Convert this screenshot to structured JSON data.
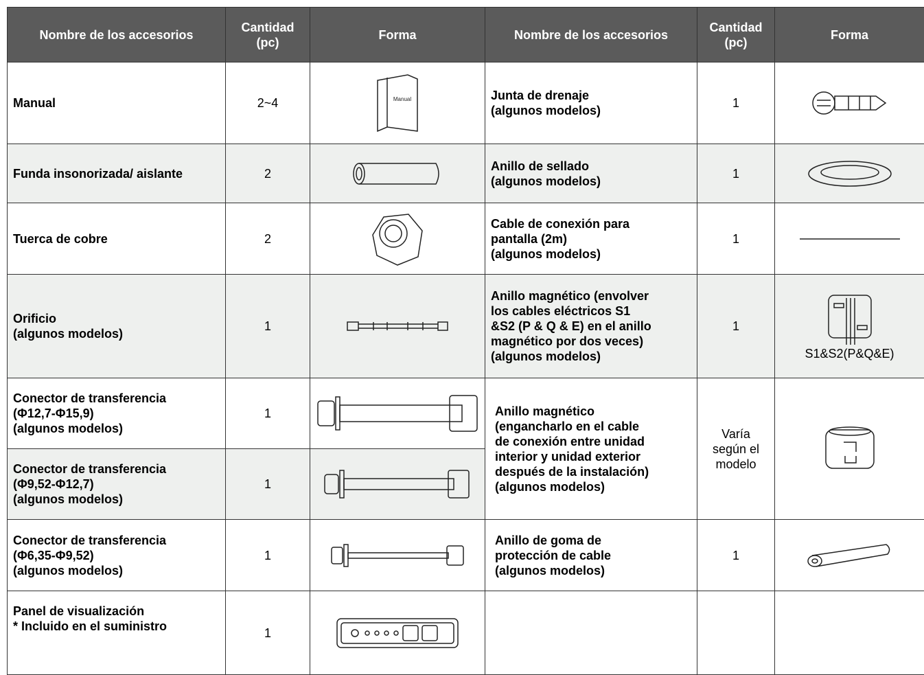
{
  "header": {
    "columns": [
      "Nombre de los accesorios",
      "Cantidad\n(pc)",
      "Forma",
      "Nombre de los accesorios",
      "Cantidad\n(pc)",
      "Forma"
    ]
  },
  "table": {
    "rows": [
      {
        "left": {
          "name": "Manual",
          "qty": "2~4",
          "icon_label": "Manual"
        },
        "right": {
          "name": "Junta de drenaje\n(algunos modelos)",
          "qty": 1
        }
      },
      {
        "left": {
          "name": "Funda insonorizada/ aislante",
          "qty": 2
        },
        "right": {
          "name": "Anillo de sellado\n(algunos modelos)",
          "qty": 1
        }
      },
      {
        "left": {
          "name": "Tuerca de cobre",
          "qty": 2
        },
        "right": {
          "name": "Cable de conexión para\npantalla (2m)\n(algunos modelos)",
          "qty": 1
        }
      },
      {
        "left": {
          "name": "Orificio\n(algunos modelos)",
          "qty": 1
        },
        "right": {
          "name": "Anillo magnético (envolver\nlos cables eléctricos S1\n&S2 (P & Q & E) en el anillo\nmagnético por dos veces)\n(algunos modelos)",
          "qty": 1,
          "icon_label": "S1&S2(P&Q&E)"
        }
      },
      {
        "left": {
          "name": "Conector de transferencia\n(Φ12,7-Φ15,9)\n(algunos modelos)",
          "qty": 1
        },
        "right": {
          "name": "Anillo magnético\n(engancharlo en el cable\nde conexión entre unidad\ninterior y unidad exterior\ndespués de la instalación)\n(algunos modelos)",
          "qty": "Varía\nsegún el\nmodelo"
        }
      },
      {
        "left": {
          "name": "Conector de transferencia\n(Φ9,52-Φ12,7)\n(algunos modelos)",
          "qty": 1
        }
      },
      {
        "left": {
          "name": "Conector de transferencia\n(Φ6,35-Φ9,52)\n(algunos modelos)",
          "qty": 1
        },
        "right": {
          "name": "Anillo de goma de\nprotección de cable\n(algunos modelos)",
          "qty": 1
        }
      },
      {
        "left": {
          "name": "Panel de visualización\n* Incluido en el suministro",
          "qty": 1
        }
      }
    ]
  }
}
